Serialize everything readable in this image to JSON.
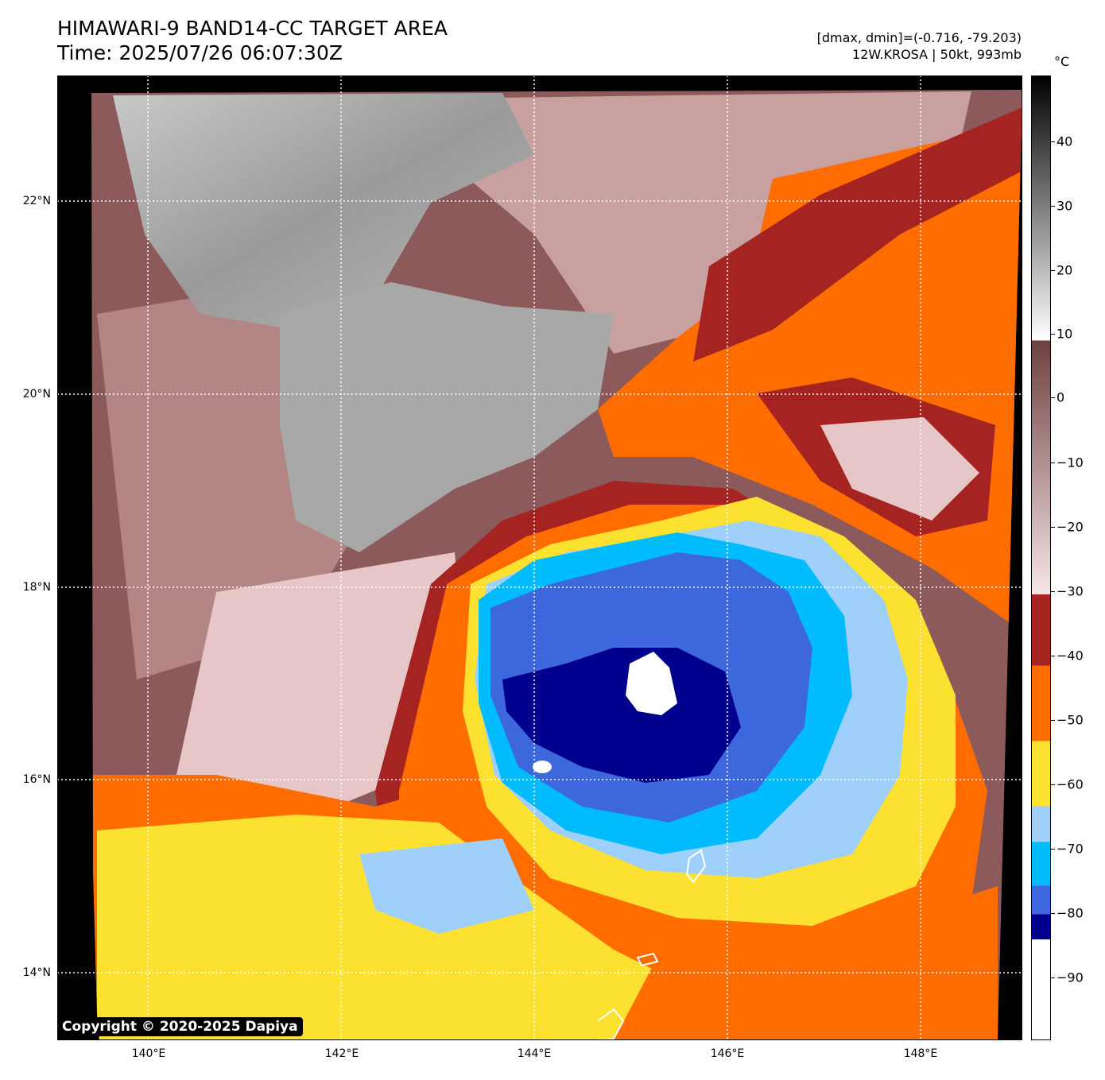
{
  "header": {
    "title_line1": "HIMAWARI-9 BAND14-CC TARGET AREA",
    "title_line2": "Time: 2025/07/26 06:07:30Z",
    "dmax_dmin": "[dmax, dmin]=(-0.716, -79.203)",
    "storm_info": "12W.KROSA | 50kt, 993mb"
  },
  "map": {
    "lat_labels": [
      "22°N",
      "20°N",
      "18°N",
      "16°N",
      "14°N"
    ],
    "lon_labels": [
      "140°E",
      "142°E",
      "144°E",
      "146°E",
      "148°E"
    ]
  },
  "colorbar": {
    "unit": "°C",
    "tick_labels": [
      "40",
      "30",
      "20",
      "10",
      "0",
      "−10",
      "−20",
      "−30",
      "−40",
      "−50",
      "−60",
      "−70",
      "−80",
      "−90"
    ],
    "colors": {
      "warm_top": "#000000",
      "warm_gray": "#808080",
      "land_white": "#ffffff",
      "brown": "#7a4a4a",
      "pink": "#f2d6d6",
      "dark_red": "#a52421",
      "orange": "#ff6d00",
      "yellow": "#fde130",
      "light_blue": "#9fd0fb",
      "cyan": "#00bcfc",
      "royal_blue": "#3d67dc",
      "navy": "#00008f",
      "coldest": "#ffffff"
    }
  },
  "footer": {
    "copyright": "Copyright © 2020-2025 Dapiya"
  }
}
